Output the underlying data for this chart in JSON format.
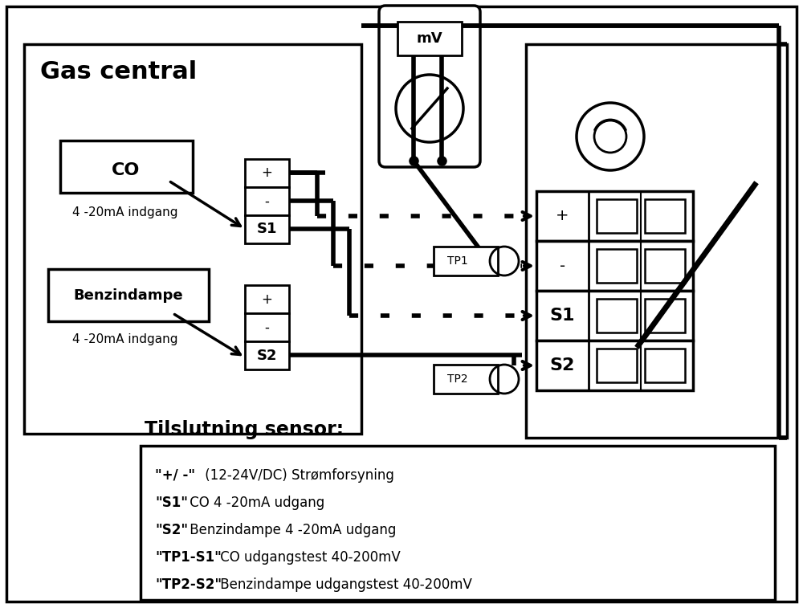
{
  "bg_color": "#ffffff",
  "line_color": "#000000",
  "gas_central_label": "Gas central",
  "co_label": "CO",
  "benzin_label": "Benzindampe",
  "co_sub": "4 -20mA indgang",
  "benzin_sub": "4 -20mA indgang",
  "mv_label": "mV",
  "tp1_label": "TP1",
  "tp2_label": "TP2",
  "legend_title": "Tilslutning sensor:",
  "legend_text": [
    [
      "\"+/ -\"",
      " (12-24V/DC) Strømforsyning"
    ],
    [
      "\"S1\"",
      " CO 4 -20mA udgang"
    ],
    [
      "\"S2\"",
      " Benzindampe 4 -20mA udgang"
    ],
    [
      "\"TP1-S1\"",
      " CO udgangstest 40-200mV"
    ],
    [
      "\"TP2-S2\"",
      " Benzindampe udgangstest 40-200mV"
    ]
  ],
  "figsize": [
    10.0,
    7.57
  ],
  "dpi": 100
}
